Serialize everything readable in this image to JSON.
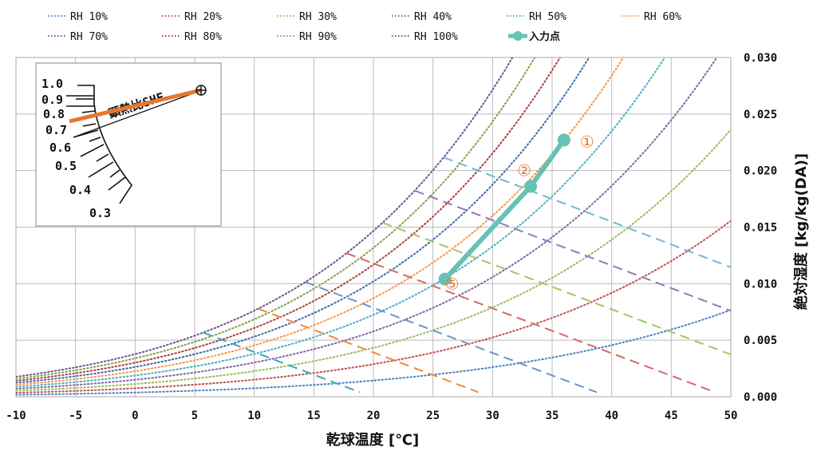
{
  "chart_data": {
    "type": "line",
    "title": "",
    "xlabel": "乾球温度 [℃]",
    "ylabel": "絶対湿度 [kg/kg(DA)]",
    "xlim": [
      -10,
      50
    ],
    "ylim": [
      0,
      0.03
    ],
    "x_ticks": [
      "-10",
      "-5",
      "0",
      "5",
      "10",
      "15",
      "20",
      "25",
      "30",
      "35",
      "40",
      "45",
      "50"
    ],
    "y_ticks": [
      "0.000",
      "0.005",
      "0.010",
      "0.015",
      "0.020",
      "0.025",
      "0.030"
    ],
    "grid": true,
    "legend_placement": "top",
    "rh_series": [
      {
        "name": "RH 10%",
        "rh": 10,
        "color": "#4F81BD"
      },
      {
        "name": "RH 20%",
        "rh": 20,
        "color": "#C0504D"
      },
      {
        "name": "RH 30%",
        "rh": 30,
        "color": "#9BBB59"
      },
      {
        "name": "RH 40%",
        "rh": 40,
        "color": "#8064A2"
      },
      {
        "name": "RH 50%",
        "rh": 50,
        "color": "#4BACC6"
      },
      {
        "name": "RH 60%",
        "rh": 60,
        "color": "#F79646"
      },
      {
        "name": "RH 70%",
        "rh": 70,
        "color": "#3A6BAA"
      },
      {
        "name": "RH 80%",
        "rh": 80,
        "color": "#A8403D"
      },
      {
        "name": "RH 90%",
        "rh": 90,
        "color": "#84A04A"
      },
      {
        "name": "RH 100%",
        "rh": 100,
        "color": "#6B5490"
      }
    ],
    "enthalpy_lines": [
      {
        "h": 20,
        "color": "#3FA4BE"
      },
      {
        "h": 30,
        "color": "#F08A3C"
      },
      {
        "h": 40,
        "color": "#6E93C6"
      },
      {
        "h": 50,
        "color": "#D06A66"
      },
      {
        "h": 60,
        "color": "#A6C46A"
      },
      {
        "h": 70,
        "color": "#9479B4"
      },
      {
        "h": 80,
        "color": "#6DBAD4"
      }
    ],
    "input_points": {
      "name": "入力点",
      "color": "#66C2B4",
      "points": [
        {
          "label": "①",
          "x": 36.0,
          "y": 0.0227
        },
        {
          "label": "②",
          "x": 33.2,
          "y": 0.0186
        },
        {
          "label": "⑤",
          "x": 26.0,
          "y": 0.0104
        }
      ]
    },
    "shf_inset": {
      "title": "顕熱比SHF",
      "scale_labels": [
        "1.0",
        "0.9",
        "0.8",
        "0.7",
        "0.6",
        "0.5",
        "0.4",
        "0.3"
      ],
      "line_color": "#E8772E"
    }
  }
}
